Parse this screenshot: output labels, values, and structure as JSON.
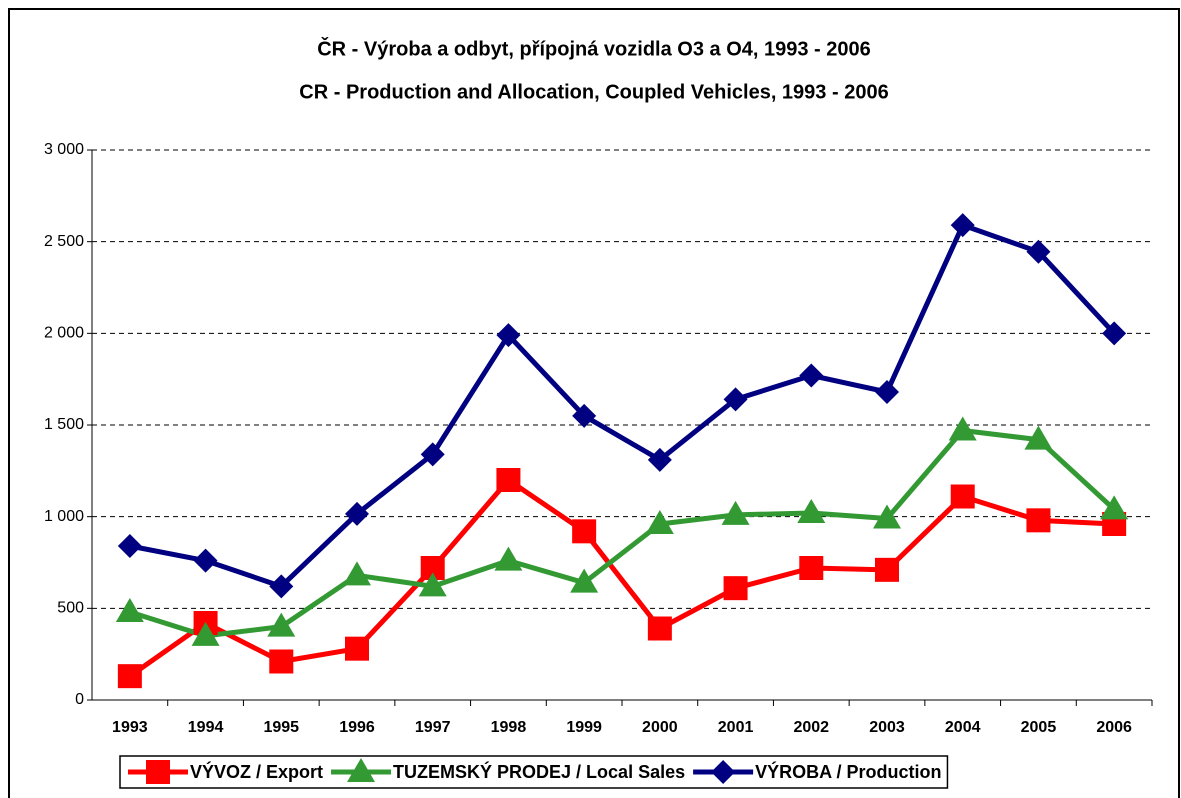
{
  "chart_data": {
    "type": "line",
    "title": "ČR - Výroba a odbyt, přípojná vozidla O3 a O4, 1993 - 2006",
    "subtitle": "CR - Production and Allocation, Coupled Vehicles, 1993 - 2006",
    "categories": [
      "1993",
      "1994",
      "1995",
      "1996",
      "1997",
      "1998",
      "1999",
      "2000",
      "2001",
      "2002",
      "2003",
      "2004",
      "2005",
      "2006"
    ],
    "series": [
      {
        "name": "VÝVOZ / Export",
        "color": "#ff0000",
        "marker": "square",
        "values": [
          130,
          420,
          210,
          280,
          720,
          1200,
          920,
          390,
          610,
          720,
          710,
          1110,
          980,
          960
        ]
      },
      {
        "name": "TUZEMSKÝ PRODEJ / Local Sales",
        "color": "#339933",
        "marker": "triangle",
        "values": [
          480,
          350,
          400,
          680,
          620,
          760,
          640,
          960,
          1010,
          1020,
          990,
          1470,
          1420,
          1040
        ]
      },
      {
        "name": "VÝROBA / Production",
        "color": "#000080",
        "marker": "diamond",
        "values": [
          840,
          760,
          620,
          1015,
          1340,
          1990,
          1550,
          1310,
          1640,
          1770,
          1680,
          2590,
          2445,
          2000
        ]
      }
    ],
    "ylim": [
      0,
      3000
    ],
    "yticks": [
      0,
      500,
      {
        "value": 1000,
        "label": "1 000"
      },
      {
        "value": 1500,
        "label": "1 500"
      },
      {
        "value": 2000,
        "label": "2 000"
      },
      {
        "value": 2500,
        "label": "2 500"
      },
      {
        "value": 3000,
        "label": "3 000"
      }
    ],
    "grid": true,
    "legend": "bottom"
  }
}
